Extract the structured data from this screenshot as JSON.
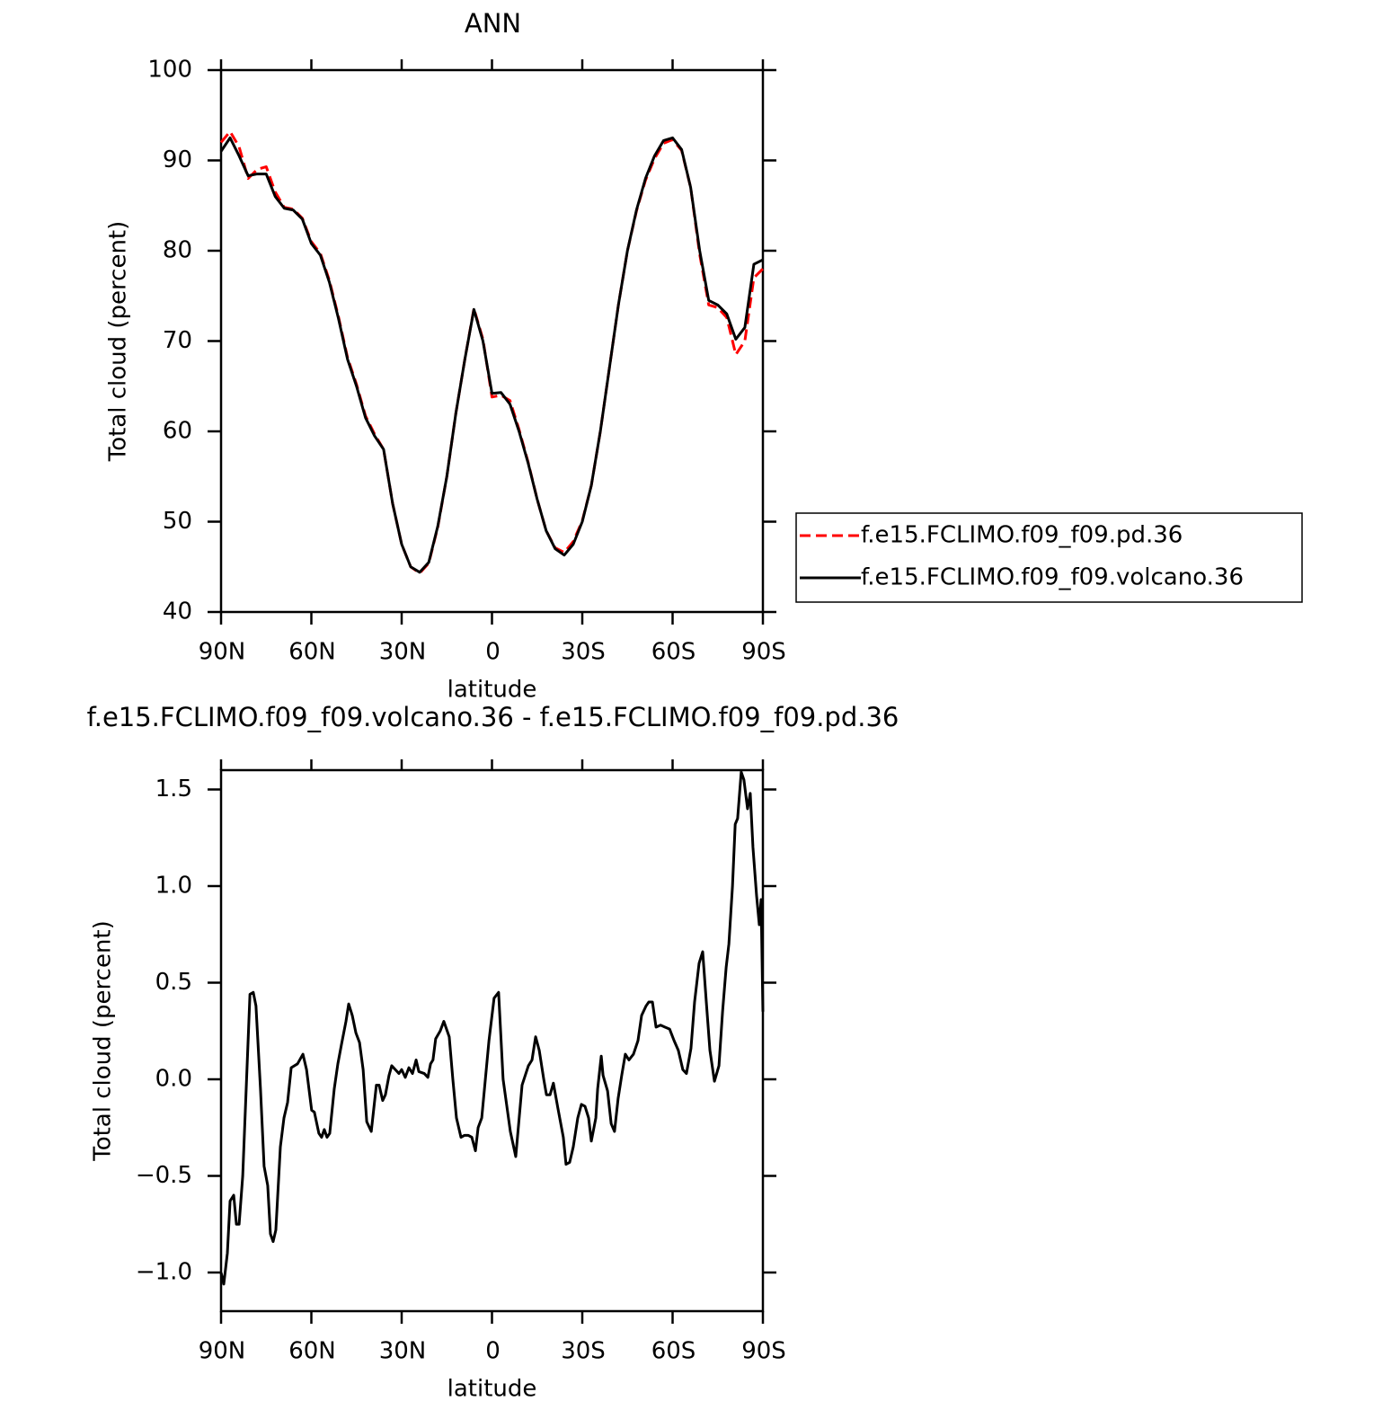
{
  "chart_data": [
    {
      "type": "line",
      "title": "ANN",
      "xlabel": "latitude",
      "ylabel": "Total cloud (percent)",
      "x": [
        90,
        87,
        84,
        81,
        78,
        75,
        72,
        69,
        66,
        63,
        60,
        57,
        54,
        51,
        48,
        45,
        42,
        39,
        36,
        33,
        30,
        27,
        24,
        21,
        18,
        15,
        12,
        9,
        6,
        3,
        0,
        -3,
        -6,
        -9,
        -12,
        -15,
        -18,
        -21,
        -24,
        -27,
        -30,
        -33,
        -36,
        -39,
        -42,
        -45,
        -48,
        -51,
        -54,
        -57,
        -60,
        -63,
        -66,
        -69,
        -72,
        -75,
        -78,
        -81,
        -84,
        -87,
        -90
      ],
      "series": [
        {
          "name": "f.e15.FCLIMO.f09_f09.pd.36",
          "color": "#ff0000",
          "dashed": true,
          "values": [
            92,
            93.2,
            91.5,
            88,
            89,
            89.3,
            86.5,
            84.8,
            84.6,
            83.6,
            81,
            79.7,
            76.7,
            72.7,
            68.2,
            65.2,
            61.7,
            59.7,
            58,
            52,
            47.5,
            45,
            44.3,
            45.4,
            49.4,
            55,
            62,
            68,
            73.6,
            70.2,
            63.8,
            64,
            63.4,
            60.2,
            56.6,
            52.5,
            49,
            47.1,
            46.6,
            47.8,
            50.1,
            54,
            60,
            67,
            74,
            80,
            84.4,
            87.8,
            90.2,
            91.9,
            92.3,
            91.1,
            87,
            79.6,
            74,
            73.7,
            72.6,
            68.5,
            70,
            77,
            78
          ]
        },
        {
          "name": "f.e15.FCLIMO.f09_f09.volcano.36",
          "color": "#000000",
          "dashed": false,
          "values": [
            91,
            92.5,
            90.5,
            88.3,
            88.5,
            88.5,
            86,
            84.7,
            84.5,
            83.5,
            80.8,
            79.5,
            76.5,
            72.5,
            68,
            65,
            61.5,
            59.5,
            58,
            52,
            47.5,
            45,
            44.4,
            45.5,
            49.5,
            55,
            62,
            68,
            73.5,
            70,
            64.2,
            64.3,
            63,
            60,
            56.5,
            52.5,
            49,
            47,
            46.3,
            47.5,
            50,
            54,
            60,
            67,
            74,
            80,
            84.5,
            88,
            90.5,
            92.2,
            92.5,
            91.2,
            87,
            80,
            74.5,
            74,
            73,
            70.2,
            71.5,
            78.5,
            79
          ]
        }
      ],
      "xlim": [
        90,
        -90
      ],
      "xticks": [
        {
          "value": 90,
          "label": "90N"
        },
        {
          "value": 60,
          "label": "60N"
        },
        {
          "value": 30,
          "label": "30N"
        },
        0,
        {
          "value": -30,
          "label": "30S"
        },
        {
          "value": -60,
          "label": "60S"
        },
        {
          "value": -90,
          "label": "90S"
        }
      ],
      "ylim": [
        40,
        100
      ],
      "yticks": [
        40,
        50,
        60,
        70,
        80,
        90,
        100
      ],
      "legend": "right"
    },
    {
      "type": "line",
      "title": "f.e15.FCLIMO.f09_f09.volcano.36 - f.e15.FCLIMO.f09_f09.pd.36",
      "xlabel": "latitude",
      "ylabel": "Total cloud (percent)",
      "x": [
        90,
        89.1,
        87.9,
        87.0,
        85.8,
        84.9,
        84.0,
        82.8,
        80.4,
        79.3,
        78.4,
        76.9,
        75.7,
        74.5,
        73.6,
        72.7,
        71.8,
        70.3,
        69.1,
        67.9,
        66.7,
        64.6,
        62.8,
        61.6,
        59.9,
        59.0,
        57.5,
        56.6,
        55.7,
        54.8,
        53.9,
        52.4,
        51.2,
        50.0,
        48.5,
        47.6,
        46.4,
        45.2,
        44.0,
        42.8,
        41.6,
        40.1,
        38.4,
        37.5,
        36.3,
        35.4,
        34.2,
        33.3,
        32.1,
        30.9,
        30.0,
        28.8,
        27.6,
        26.4,
        25.2,
        24.3,
        22.5,
        21.3,
        20.4,
        19.6,
        18.7,
        17.2,
        16.0,
        14.2,
        13.0,
        11.8,
        10.3,
        9.1,
        7.9,
        6.7,
        5.5,
        4.6,
        3.4,
        2.2,
        1.0,
        -0.7,
        -2.2,
        -3.7,
        -6.1,
        -7.9,
        -10.0,
        -12.1,
        -13.3,
        -14.5,
        -15.7,
        -17.2,
        -18.1,
        -19.3,
        -20.4,
        -21.9,
        -23.7,
        -24.6,
        -25.8,
        -27.0,
        -28.5,
        -29.7,
        -30.9,
        -32.1,
        -33.0,
        -34.5,
        -35.1,
        -36.3,
        -36.9,
        -38.4,
        -39.6,
        -40.7,
        -41.9,
        -43.1,
        -44.3,
        -45.5,
        -47.0,
        -48.5,
        -49.7,
        -51.2,
        -52.1,
        -53.3,
        -54.5,
        -56.0,
        -57.5,
        -59.0,
        -60.5,
        -61.9,
        -63.4,
        -64.6,
        -66.1,
        -67.3,
        -68.8,
        -70.0,
        -71.2,
        -72.4,
        -73.9,
        -75.4,
        -76.6,
        -77.8,
        -78.7,
        -79.9,
        -80.8,
        -81.6,
        -82.8,
        -83.7,
        -84.9,
        -85.8,
        -86.7,
        -87.9,
        -88.8,
        -89.4,
        -90
      ],
      "values": [
        -1.0,
        -1.06,
        -0.9,
        -0.63,
        -0.6,
        -0.75,
        -0.75,
        -0.5,
        0.44,
        0.45,
        0.38,
        -0.05,
        -0.45,
        -0.55,
        -0.8,
        -0.84,
        -0.78,
        -0.35,
        -0.2,
        -0.12,
        0.06,
        0.08,
        0.13,
        0.05,
        -0.16,
        -0.17,
        -0.28,
        -0.3,
        -0.26,
        -0.3,
        -0.28,
        -0.05,
        0.08,
        0.18,
        0.3,
        0.39,
        0.33,
        0.24,
        0.19,
        0.05,
        -0.22,
        -0.27,
        -0.03,
        -0.03,
        -0.11,
        -0.08,
        0.02,
        0.07,
        0.05,
        0.03,
        0.05,
        0.01,
        0.06,
        0.03,
        0.1,
        0.04,
        0.03,
        0.01,
        0.08,
        0.1,
        0.21,
        0.25,
        0.3,
        0.22,
        0.0,
        -0.2,
        -0.3,
        -0.29,
        -0.29,
        -0.3,
        -0.37,
        -0.25,
        -0.2,
        0.0,
        0.2,
        0.42,
        0.45,
        0.0,
        -0.27,
        -0.4,
        -0.03,
        0.07,
        0.1,
        0.22,
        0.15,
        0.0,
        -0.08,
        -0.08,
        -0.02,
        -0.15,
        -0.3,
        -0.44,
        -0.43,
        -0.35,
        -0.2,
        -0.13,
        -0.14,
        -0.2,
        -0.32,
        -0.2,
        -0.05,
        0.12,
        0.02,
        -0.06,
        -0.23,
        -0.27,
        -0.1,
        0.02,
        0.13,
        0.1,
        0.13,
        0.2,
        0.33,
        0.38,
        0.4,
        0.4,
        0.27,
        0.28,
        0.27,
        0.26,
        0.2,
        0.15,
        0.05,
        0.03,
        0.16,
        0.4,
        0.6,
        0.66,
        0.4,
        0.15,
        -0.01,
        0.07,
        0.35,
        0.58,
        0.7,
        1.0,
        1.32,
        1.35,
        1.59,
        1.55,
        1.4,
        1.48,
        1.2,
        0.95,
        0.8,
        0.93,
        0.35
      ],
      "color": "#000000",
      "xlim": [
        90,
        -90
      ],
      "xticks": [
        {
          "value": 90,
          "label": "90N"
        },
        {
          "value": 60,
          "label": "60N"
        },
        {
          "value": 30,
          "label": "30N"
        },
        0,
        {
          "value": -30,
          "label": "30S"
        },
        {
          "value": -60,
          "label": "60S"
        },
        {
          "value": -90,
          "label": "90S"
        }
      ],
      "ylim": [
        -1.2,
        1.6
      ],
      "yticks": [
        {
          "value": -1,
          "label": "−1.0"
        },
        {
          "value": -0.5,
          "label": "−0.5"
        },
        {
          "value": 0,
          "label": "0.0"
        },
        0.5,
        {
          "value": 1,
          "label": "1.0"
        },
        1.5
      ]
    }
  ]
}
